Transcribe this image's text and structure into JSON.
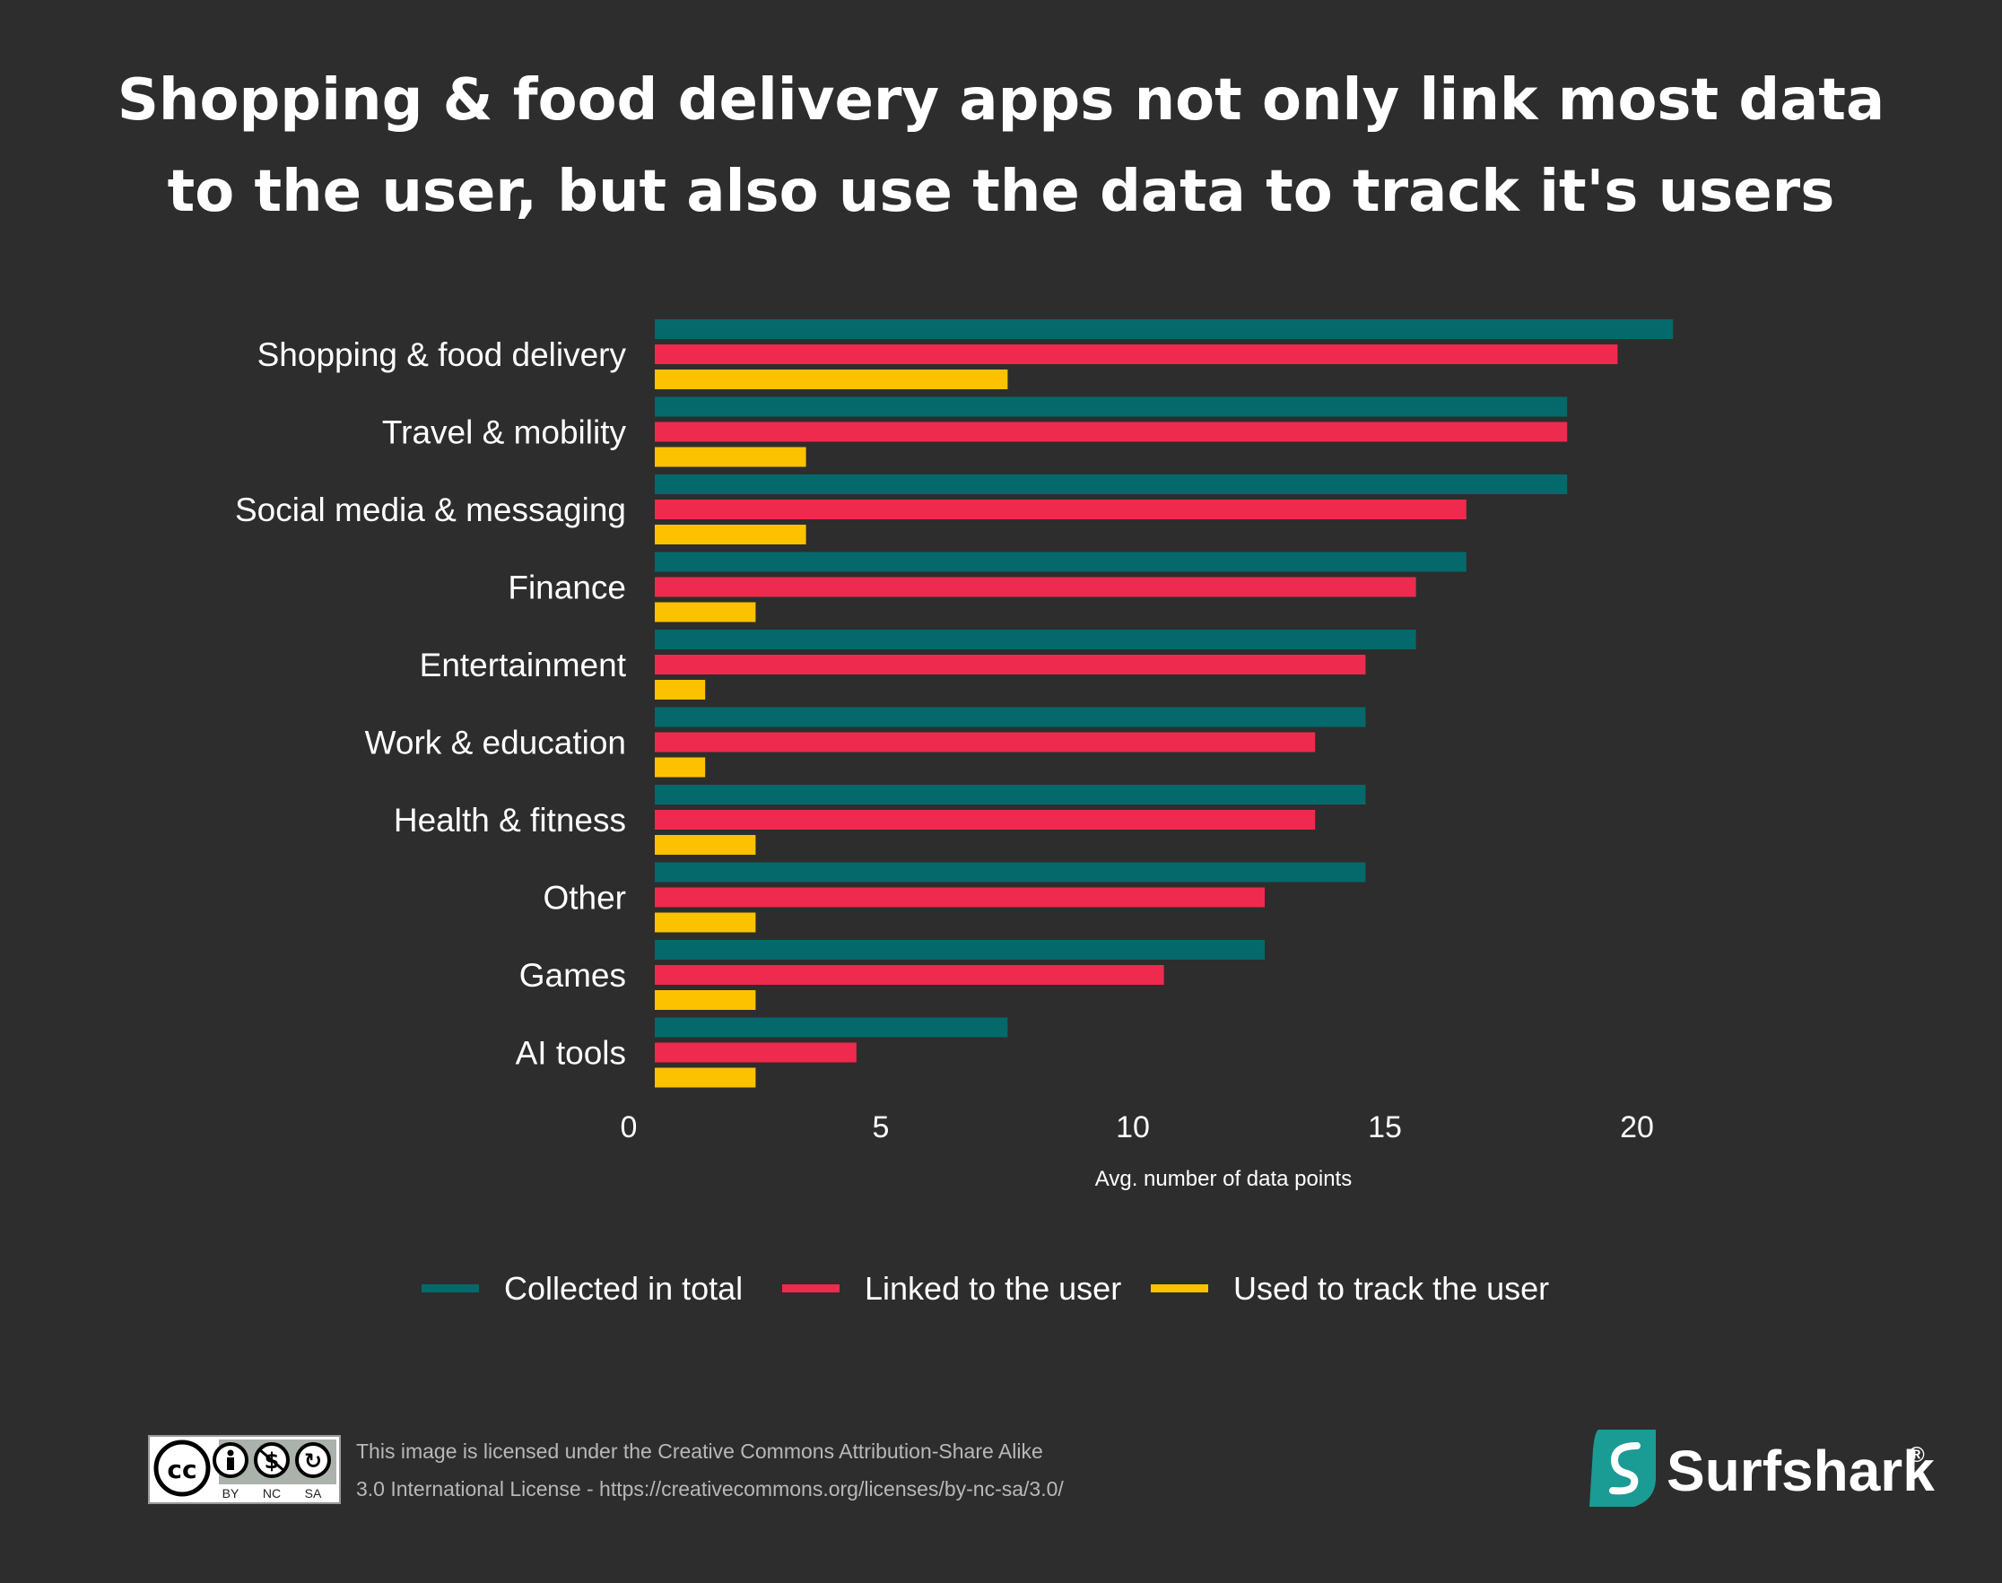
{
  "chart_data": {
    "type": "bar",
    "orientation": "horizontal",
    "title": "Shopping & food delivery apps not only link most data to the user, but also use the data to track it's users",
    "title_lines": [
      "Shopping & food delivery apps not only link most data",
      "to the user, but also use the data to track it's users"
    ],
    "categories": [
      "Shopping & food delivery",
      "Travel & mobility",
      "Social media & messaging",
      "Finance",
      "Entertainment",
      "Work & education",
      "Health & fitness",
      "Other",
      "Games",
      "AI tools"
    ],
    "series": [
      {
        "name": "Collected in total",
        "color": "#05696b",
        "values": [
          20.2,
          18.1,
          18.1,
          16.1,
          15.1,
          14.1,
          14.1,
          14.1,
          12.1,
          7.0
        ]
      },
      {
        "name": "Linked to the user",
        "color": "#ee2a4e",
        "values": [
          19.1,
          18.1,
          16.1,
          15.1,
          14.1,
          13.1,
          13.1,
          12.1,
          10.1,
          4.0
        ]
      },
      {
        "name": "Used to track the user",
        "color": "#fcc200",
        "values": [
          7.0,
          3.0,
          3.0,
          2.0,
          1.0,
          1.0,
          2.0,
          2.0,
          2.0,
          2.0
        ]
      }
    ],
    "xlabel": "Avg. number of data points",
    "ylabel": "",
    "xlim": [
      0,
      20
    ],
    "xticks": [
      0,
      5,
      10,
      15,
      20
    ],
    "grid": false,
    "legend_position": "bottom-center"
  },
  "footer": {
    "license_line1": "This image is licensed under the Creative Commons Attribution-Share Alike",
    "license_line2": "3.0 International License - https://creativecommons.org/licenses/by-nc-sa/3.0/",
    "cc_badge_labels": [
      "BY",
      "NC",
      "SA"
    ],
    "brand_name": "Surfshark",
    "brand_mark": "®"
  }
}
